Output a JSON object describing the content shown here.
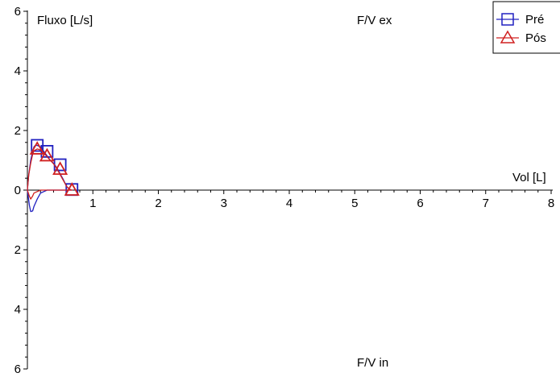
{
  "chart_data": {
    "type": "line",
    "xlabel": "Vol [L]",
    "ylabel": "Fluxo [L/s]",
    "annotations": {
      "top": "F/V ex",
      "bottom": "F/V in"
    },
    "xlim": [
      0,
      8
    ],
    "ylim": [
      -6,
      6
    ],
    "x_ticks": [
      1,
      2,
      3,
      4,
      5,
      6,
      7,
      8
    ],
    "y_ticks": [
      {
        "value": 6,
        "label": "6"
      },
      {
        "value": 4,
        "label": "4"
      },
      {
        "value": 2,
        "label": "2"
      },
      {
        "value": 0,
        "label": "0"
      },
      {
        "value": -2,
        "label": "2"
      },
      {
        "value": -4,
        "label": "4"
      },
      {
        "value": -6,
        "label": "6"
      }
    ],
    "legend_position": "top-right",
    "series": [
      {
        "name": "Pré",
        "color": "#2020c0",
        "marker": "square",
        "x": [
          0.0,
          0.02,
          0.05,
          0.08,
          0.1,
          0.12,
          0.15,
          0.2,
          0.25,
          0.3,
          0.35,
          0.4,
          0.45,
          0.5,
          0.55,
          0.6,
          0.65,
          0.68,
          0.65,
          0.6,
          0.5,
          0.4,
          0.3,
          0.2,
          0.15,
          0.1,
          0.08,
          0.05,
          0.03,
          0.0
        ],
        "y": [
          0.0,
          0.5,
          1.0,
          1.3,
          1.45,
          1.5,
          1.5,
          1.45,
          1.3,
          1.15,
          1.0,
          0.9,
          0.75,
          0.55,
          0.35,
          0.12,
          0.02,
          0.0,
          0.0,
          0.0,
          0.0,
          0.0,
          0.0,
          -0.1,
          -0.3,
          -0.55,
          -0.7,
          -0.72,
          -0.5,
          0.0
        ],
        "markers_x": [
          0.15,
          0.3,
          0.5,
          0.68
        ],
        "markers_y": [
          1.5,
          1.3,
          0.85,
          0.02
        ]
      },
      {
        "name": "Pós",
        "color": "#d02020",
        "marker": "triangle",
        "x": [
          0.0,
          0.02,
          0.05,
          0.08,
          0.1,
          0.15,
          0.2,
          0.25,
          0.3,
          0.35,
          0.4,
          0.45,
          0.5,
          0.55,
          0.6,
          0.65,
          0.68,
          0.65,
          0.6,
          0.5,
          0.4,
          0.3,
          0.2,
          0.15,
          0.1,
          0.08,
          0.05,
          0.03,
          0.0
        ],
        "y": [
          0.0,
          0.5,
          0.9,
          1.2,
          1.32,
          1.38,
          1.35,
          1.25,
          1.12,
          1.0,
          0.88,
          0.72,
          0.52,
          0.32,
          0.12,
          0.02,
          0.0,
          0.0,
          0.0,
          0.0,
          0.0,
          0.0,
          0.0,
          -0.05,
          -0.1,
          -0.2,
          -0.3,
          -0.2,
          0.0
        ],
        "markers_x": [
          0.15,
          0.3,
          0.5,
          0.68
        ],
        "markers_y": [
          1.38,
          1.15,
          0.7,
          0.0
        ]
      }
    ]
  }
}
